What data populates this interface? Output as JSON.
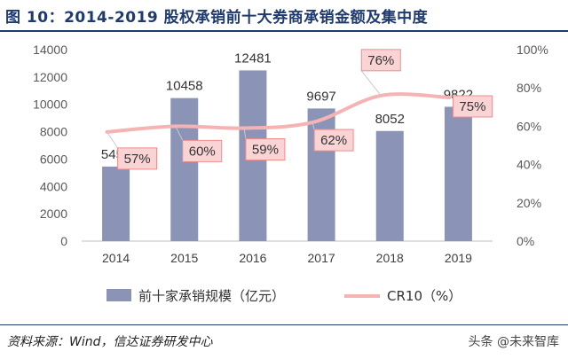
{
  "header": {
    "title": "图 10：2014-2019 股权承销前十大券商承销金额及集中度"
  },
  "footer": {
    "source": "资料来源：Wind，信达证券研发中心",
    "watermark": "头条 @未来智库"
  },
  "colors": {
    "bar": "#8b93b7",
    "line": "#f5b3b3",
    "label_bg": "#fad4d4",
    "label_border": "#f08c8c"
  },
  "chart_data": {
    "type": "bar",
    "categories": [
      "2014",
      "2015",
      "2016",
      "2017",
      "2018",
      "2019"
    ],
    "series": [
      {
        "name": "前十家承销规模（亿元）",
        "type": "bar",
        "axis": "left",
        "values": [
          5451,
          10458,
          12481,
          9697,
          8052,
          9822
        ]
      },
      {
        "name": "CR10（%）",
        "type": "line",
        "axis": "right",
        "values": [
          57,
          60,
          59,
          62,
          76,
          75
        ]
      }
    ],
    "y_left": {
      "min": 0,
      "max": 14000,
      "ticks": [
        "0",
        "2000",
        "4000",
        "6000",
        "8000",
        "10000",
        "12000",
        "14000"
      ]
    },
    "y_right": {
      "min": 0,
      "max": 100,
      "ticks": [
        "0%",
        "20%",
        "40%",
        "60%",
        "80%",
        "100%"
      ]
    },
    "bar_labels": [
      "5451",
      "10458",
      "12481",
      "9697",
      "8052",
      "9822"
    ],
    "line_labels": [
      "57%",
      "60%",
      "59%",
      "62%",
      "76%",
      "75%"
    ],
    "legend": {
      "position": "bottom",
      "items": [
        "前十家承销规模（亿元）",
        "CR10（%）"
      ]
    },
    "grid": false
  }
}
